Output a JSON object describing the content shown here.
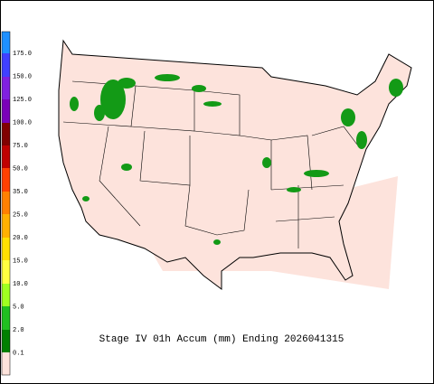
{
  "title": "Stage IV 01h Accum (mm) Ending 2026041315",
  "legend": {
    "labels": [
      "175.0",
      "150.0",
      "125.0",
      "100.0",
      "75.0",
      "50.0",
      "35.0",
      "25.0",
      "20.0",
      "15.0",
      "10.0",
      "5.0",
      "2.0",
      "0.1"
    ]
  }
}
